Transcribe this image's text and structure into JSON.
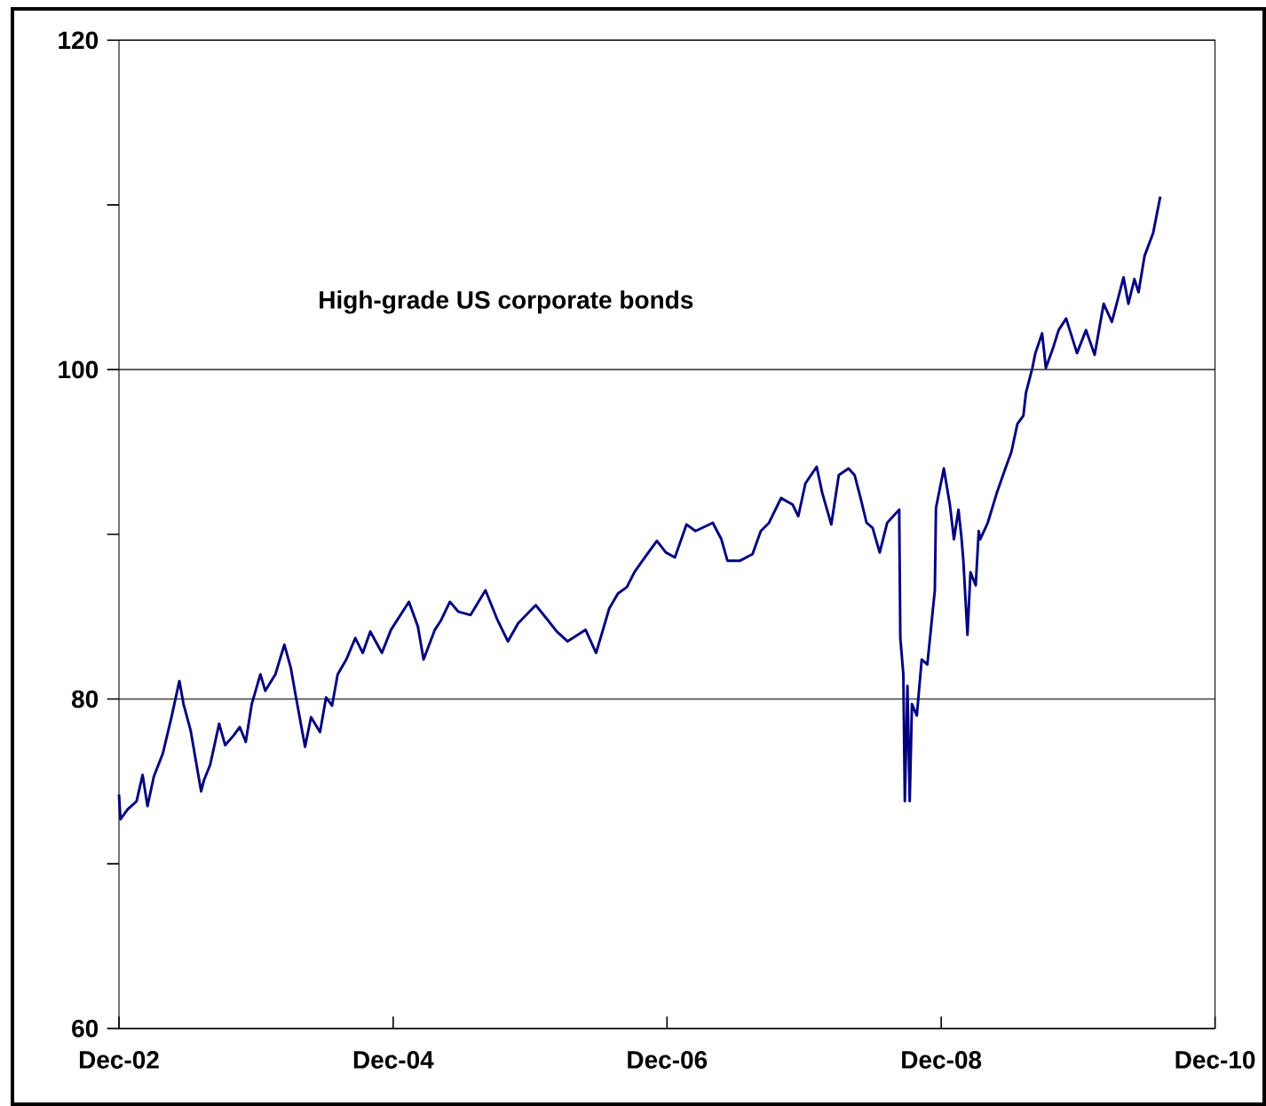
{
  "chart_data": {
    "type": "line",
    "annotations": [
      "High-grade US corporate bonds"
    ],
    "xlim": [
      "2002-12-01",
      "2010-12-01"
    ],
    "xticks": [
      {
        "value": "2002-12-01",
        "label": "Dec-02"
      },
      {
        "value": "2004-12-01",
        "label": "Dec-04"
      },
      {
        "value": "2006-12-01",
        "label": "Dec-06"
      },
      {
        "value": "2008-12-01",
        "label": "Dec-08"
      },
      {
        "value": "2010-12-01",
        "label": "Dec-10"
      }
    ],
    "ylim": [
      60,
      120
    ],
    "yticks": [
      60,
      {
        "value": 70,
        "label": null
      },
      80,
      {
        "value": 90,
        "label": null
      },
      100,
      {
        "value": 110,
        "label": null
      },
      120
    ],
    "grid": "y",
    "series": [
      {
        "color": "#000080",
        "x": [
          "2002-12-01",
          "2002-12-05",
          "2002-12-24",
          "2003-01-17",
          "2003-02-02",
          "2003-02-15",
          "2003-03-04",
          "2003-03-28",
          "2003-04-20",
          "2003-05-11",
          "2003-05-22",
          "2003-06-10",
          "2003-07-08",
          "2003-07-16",
          "2003-08-01",
          "2003-08-25",
          "2003-09-10",
          "2003-10-03",
          "2003-10-19",
          "2003-11-04",
          "2003-11-20",
          "2003-12-13",
          "2003-12-26",
          "2004-01-22",
          "2004-02-15",
          "2004-03-03",
          "2004-03-17",
          "2004-04-10",
          "2004-04-26",
          "2004-05-20",
          "2004-06-05",
          "2004-06-21",
          "2004-07-06",
          "2004-07-29",
          "2004-08-22",
          "2004-09-11",
          "2004-10-01",
          "2004-11-01",
          "2004-11-25",
          "2005-01-12",
          "2005-02-05",
          "2005-02-20",
          "2005-03-22",
          "2005-04-08",
          "2005-05-01",
          "2005-05-24",
          "2005-06-25",
          "2005-08-04",
          "2005-09-05",
          "2005-10-03",
          "2005-10-30",
          "2005-12-16",
          "2006-01-17",
          "2006-02-10",
          "2006-03-11",
          "2006-04-28",
          "2006-05-26",
          "2006-06-30",
          "2006-07-23",
          "2006-08-16",
          "2006-09-05",
          "2006-10-03",
          "2006-11-04",
          "2006-11-28",
          "2006-12-22",
          "2007-01-22",
          "2007-02-15",
          "2007-04-02",
          "2007-04-25",
          "2007-05-11",
          "2007-06-14",
          "2007-07-17",
          "2007-08-08",
          "2007-08-30",
          "2007-10-01",
          "2007-11-01",
          "2007-11-16",
          "2007-12-05",
          "2008-01-04",
          "2008-01-19",
          "2008-02-12",
          "2008-03-03",
          "2008-03-29",
          "2008-04-14",
          "2008-04-30",
          "2008-05-16",
          "2008-06-01",
          "2008-06-20",
          "2008-07-10",
          "2008-08-11",
          "2008-08-14",
          "2008-08-22",
          "2008-08-26",
          "2008-09-02",
          "2008-09-08",
          "2008-09-14",
          "2008-09-27",
          "2008-10-10",
          "2008-10-25",
          "2008-11-06",
          "2008-11-14",
          "2008-11-17",
          "2008-12-08",
          "2008-12-24",
          "2009-01-04",
          "2009-01-16",
          "2009-01-24",
          "2009-01-29",
          "2009-02-09",
          "2009-02-17",
          "2009-03-03",
          "2009-03-11",
          "2009-03-15",
          "2009-04-04",
          "2009-04-28",
          "2009-05-21",
          "2009-06-06",
          "2009-06-22",
          "2009-07-08",
          "2009-07-15",
          "2009-08-01",
          "2009-08-09",
          "2009-08-27",
          "2009-09-06",
          "2009-09-25",
          "2009-10-10",
          "2009-10-30",
          "2009-11-28",
          "2009-12-22",
          "2010-01-14",
          "2010-02-07",
          "2010-03-01",
          "2010-04-01",
          "2010-04-14",
          "2010-04-30",
          "2010-05-11",
          "2010-05-27",
          "2010-06-19",
          "2010-07-08"
        ],
        "values": [
          74.2,
          72.7,
          73.3,
          73.8,
          75.4,
          73.5,
          75.3,
          76.7,
          78.9,
          81.1,
          79.7,
          78.1,
          74.4,
          75.1,
          76.0,
          78.5,
          77.2,
          77.8,
          78.3,
          77.4,
          79.7,
          81.5,
          80.5,
          81.5,
          83.3,
          81.9,
          80.1,
          77.1,
          78.9,
          78.0,
          80.1,
          79.6,
          81.5,
          82.4,
          83.7,
          82.8,
          84.1,
          82.8,
          84.2,
          85.9,
          84.4,
          82.4,
          84.2,
          84.8,
          85.9,
          85.3,
          85.1,
          86.6,
          84.8,
          83.5,
          84.6,
          85.7,
          84.8,
          84.1,
          83.5,
          84.2,
          82.8,
          85.5,
          86.4,
          86.8,
          87.7,
          88.6,
          89.6,
          88.9,
          88.6,
          90.6,
          90.2,
          90.7,
          89.7,
          88.4,
          88.4,
          88.8,
          90.2,
          90.7,
          92.2,
          91.8,
          91.1,
          93.1,
          94.1,
          92.5,
          90.6,
          93.6,
          94.0,
          93.6,
          92.2,
          90.7,
          90.4,
          88.9,
          90.7,
          91.5,
          83.7,
          81.5,
          73.8,
          80.8,
          73.8,
          79.7,
          79.0,
          82.4,
          82.1,
          84.8,
          86.6,
          91.6,
          94.0,
          91.8,
          89.7,
          91.5,
          89.8,
          88.4,
          83.9,
          87.7,
          86.9,
          90.2,
          89.7,
          90.7,
          92.5,
          94.0,
          95.0,
          96.7,
          97.2,
          98.6,
          100.1,
          101.0,
          102.2,
          100.1,
          101.3,
          102.4,
          103.1,
          101.0,
          102.4,
          100.9,
          104.0,
          102.9,
          105.6,
          104.0,
          105.5,
          104.7,
          106.9,
          108.3,
          110.5
        ]
      }
    ]
  }
}
